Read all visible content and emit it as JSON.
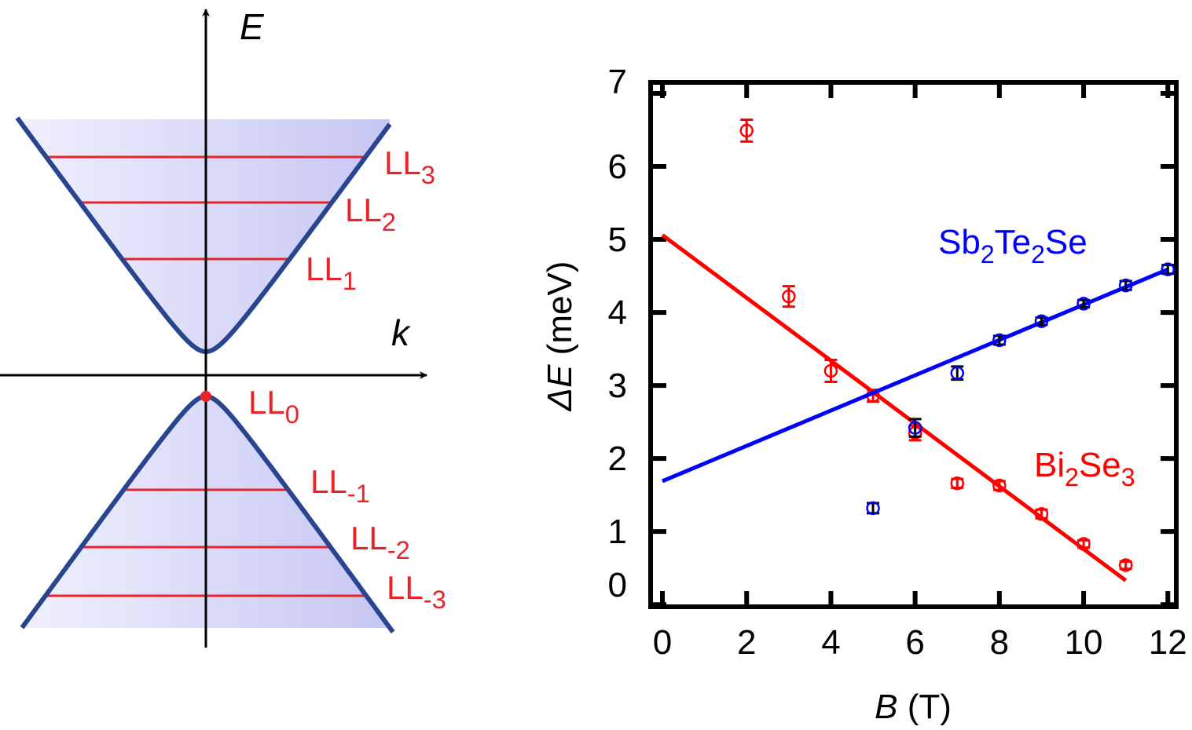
{
  "diagram": {
    "axis_y_label": "E",
    "axis_x_label": "k",
    "levels_upper": [
      {
        "base": "LL",
        "sub": "3"
      },
      {
        "base": "LL",
        "sub": "2"
      },
      {
        "base": "LL",
        "sub": "1"
      }
    ],
    "level_zero": {
      "base": "LL",
      "sub": "0"
    },
    "levels_lower": [
      {
        "base": "LL",
        "sub": "-1"
      },
      {
        "base": "LL",
        "sub": "-2"
      },
      {
        "base": "LL",
        "sub": "-3"
      }
    ],
    "colors": {
      "cone": "#2a4590",
      "level": "#e8242a",
      "fill_light": "#f0f0fd",
      "fill_dark": "#c6c6f4"
    }
  },
  "chart_data": {
    "type": "scatter",
    "title": "",
    "xlabel": {
      "symbol": "B",
      "unit": " (T)"
    },
    "ylabel": {
      "symbol": "ΔE",
      "unit": " (meV)"
    },
    "xlim": [
      -0.28,
      12.2
    ],
    "ylim": [
      -0.03,
      7.15
    ],
    "xticks": [
      0,
      2,
      4,
      6,
      8,
      10,
      12
    ],
    "yticks": [
      0,
      1,
      2,
      3,
      4,
      5,
      6,
      7
    ],
    "grid": false,
    "series": [
      {
        "name": "Bi2Se3",
        "label_parts": [
          {
            "t": "Bi"
          },
          {
            "s": "2"
          },
          {
            "t": "Se"
          },
          {
            "s": "3"
          }
        ],
        "color": "#ff0000",
        "x": [
          2,
          3,
          4,
          5,
          6,
          7,
          8,
          9,
          10,
          11
        ],
        "y": [
          6.49,
          4.22,
          3.2,
          2.86,
          2.35,
          1.66,
          1.63,
          1.24,
          0.83,
          0.54
        ],
        "err": [
          0.15,
          0.14,
          0.15,
          0.08,
          0.1,
          0.06,
          0.06,
          0.06,
          0.05,
          0.05
        ],
        "fit": {
          "x": [
            0,
            11
          ],
          "y": [
            5.06,
            0.33
          ]
        }
      },
      {
        "name": "Sb2Te2Se",
        "label_parts": [
          {
            "t": "Sb"
          },
          {
            "s": "2"
          },
          {
            "t": "Te"
          },
          {
            "s": "2"
          },
          {
            "t": "Se"
          }
        ],
        "color": "#0000ff",
        "errcolor": "#000000",
        "x": [
          5,
          6,
          7,
          8,
          9,
          10,
          11,
          12
        ],
        "y": [
          1.32,
          2.42,
          3.17,
          3.62,
          3.88,
          4.12,
          4.37,
          4.59
        ],
        "err": [
          0.07,
          0.12,
          0.09,
          0.06,
          0.05,
          0.05,
          0.06,
          0.06
        ],
        "fit": {
          "x": [
            0,
            12
          ],
          "y": [
            1.69,
            4.59
          ]
        }
      }
    ]
  }
}
